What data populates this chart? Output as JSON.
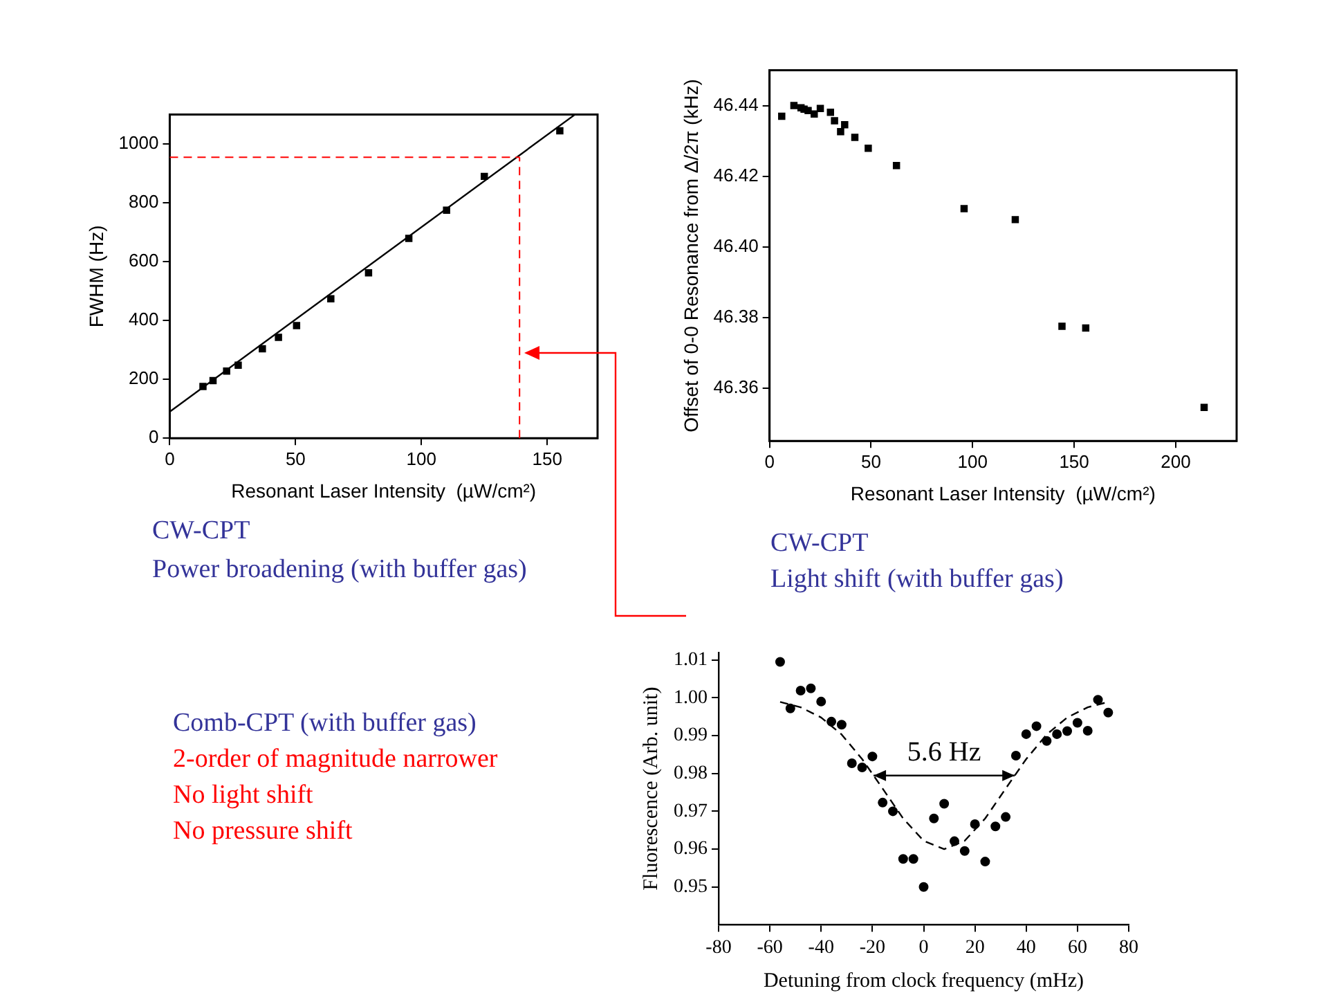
{
  "chart_data": [
    {
      "type": "scatter",
      "xlabel": "Resonant Laser Intensity  (µW/cm²)",
      "ylabel": "FWHM (Hz)",
      "xlim": [
        0,
        170
      ],
      "ylim": [
        0,
        1100
      ],
      "xticks": [
        0,
        50,
        100,
        150
      ],
      "yticks": [
        0,
        200,
        400,
        600,
        800,
        1000
      ],
      "grid": false,
      "legend": false,
      "marker": "square",
      "x": [
        13.2,
        17.2,
        22.6,
        27.2,
        36.8,
        43.2,
        50.4,
        64,
        79,
        95,
        110,
        125,
        155
      ],
      "series": [
        {
          "color": "#000000",
          "values": [
            176,
            196,
            228,
            248,
            304,
            343,
            383,
            474,
            562,
            679,
            775,
            890,
            1045
          ]
        },
        {
          "type": "line",
          "color": "#000000",
          "line_style": "solid",
          "marker": "none",
          "x": [
            0,
            161
          ],
          "values": [
            90,
            1100
          ]
        }
      ],
      "ref_lines": [
        {
          "axis": "y",
          "value": 955,
          "color": "#ff0000",
          "line_style": "dashed"
        },
        {
          "axis": "x",
          "value": 139,
          "color": "#ff0000",
          "line_style": "dashed"
        }
      ],
      "annotations": [
        "CW-CPT",
        "Power broadening (with buffer gas)"
      ]
    },
    {
      "type": "scatter",
      "xlabel": "Resonant Laser Intensity  (µW/cm²)",
      "ylabel": "Offset of 0-0 Resonance from Δ/2π (kHz)",
      "xlim": [
        0,
        230
      ],
      "ylim": [
        46.345,
        46.45
      ],
      "xticks": [
        0,
        50,
        100,
        150,
        200
      ],
      "yticks": [
        {
          "value": 46.36,
          "label": "46.36"
        },
        {
          "value": 46.38,
          "label": "46.38"
        },
        {
          "value": 46.4,
          "label": "46.40"
        },
        {
          "value": 46.42,
          "label": "46.42"
        },
        {
          "value": 46.44,
          "label": "46.44"
        }
      ],
      "grid": false,
      "legend": false,
      "marker": "square",
      "x": [
        6,
        12,
        15.5,
        17,
        19,
        22,
        25,
        30,
        32,
        35,
        37,
        42,
        48.6,
        62.5,
        95.8,
        121,
        144,
        155.7,
        214
      ],
      "series": [
        {
          "color": "#000000",
          "values": [
            46.437,
            46.44,
            46.4394,
            46.439,
            46.4386,
            46.4376,
            46.4392,
            46.4381,
            46.4357,
            46.4326,
            46.4346,
            46.431,
            46.4279,
            46.423,
            46.4108,
            46.4077,
            46.3775,
            46.377,
            46.3545
          ]
        }
      ],
      "annotations": [
        "CW-CPT",
        "Light shift (with buffer gas)"
      ]
    },
    {
      "type": "scatter",
      "xlabel": "Detuning from clock frequency (mHz)",
      "ylabel": "Fluorescence (Arb. unit)",
      "xlim": [
        -80,
        80
      ],
      "ylim": [
        0.94,
        1.012
      ],
      "xticks": [
        -80,
        -60,
        -40,
        -20,
        0,
        20,
        40,
        60,
        80
      ],
      "yticks": [
        {
          "value": 0.95,
          "label": "0.95"
        },
        {
          "value": 0.96,
          "label": "0.96"
        },
        {
          "value": 0.97,
          "label": "0.97"
        },
        {
          "value": 0.98,
          "label": "0.98"
        },
        {
          "value": 0.99,
          "label": "0.99"
        },
        {
          "value": 1,
          "label": "1.00"
        },
        {
          "value": 1.01,
          "label": "1.01"
        }
      ],
      "grid": false,
      "legend": false,
      "marker": "circle",
      "x": [
        -56,
        -52,
        -48,
        -44,
        -40,
        -36,
        -32,
        -28,
        -24,
        -20,
        -16,
        -12,
        -8,
        -4,
        0,
        4,
        8,
        12,
        16,
        20,
        24,
        28,
        32,
        36,
        40,
        44,
        48,
        52,
        56,
        60,
        64,
        68,
        72
      ],
      "series": [
        {
          "color": "#000000",
          "values": [
            1.0095,
            0.9972,
            1.0019,
            1.0025,
            0.999,
            0.9937,
            0.9929,
            0.9827,
            0.9816,
            0.9845,
            0.9723,
            0.97,
            0.9574,
            0.9574,
            0.95,
            0.9681,
            0.972,
            0.9621,
            0.9595,
            0.9666,
            0.9567,
            0.966,
            0.9685,
            0.9847,
            0.9904,
            0.9925,
            0.9886,
            0.9904,
            0.9912,
            0.9934,
            0.9913,
            0.9995,
            0.9961
          ]
        },
        {
          "type": "line",
          "color": "#000000",
          "line_style": "dashed",
          "marker": "none",
          "x": [
            -56,
            -48,
            -40,
            -32,
            -24,
            -16,
            -8,
            0,
            8,
            16,
            24,
            32,
            40,
            48,
            56,
            64,
            72
          ],
          "values": [
            0.9989,
            0.9975,
            0.9948,
            0.9903,
            0.9838,
            0.976,
            0.9681,
            0.9622,
            0.96,
            0.9622,
            0.9681,
            0.976,
            0.9838,
            0.9903,
            0.9948,
            0.9975,
            0.9989
          ]
        }
      ],
      "annotations": [
        "5.6 Hz",
        "Comb-CPT (with buffer gas)",
        "2-order of magnitude narrower",
        "No light shift",
        "No pressure shift"
      ]
    }
  ]
}
